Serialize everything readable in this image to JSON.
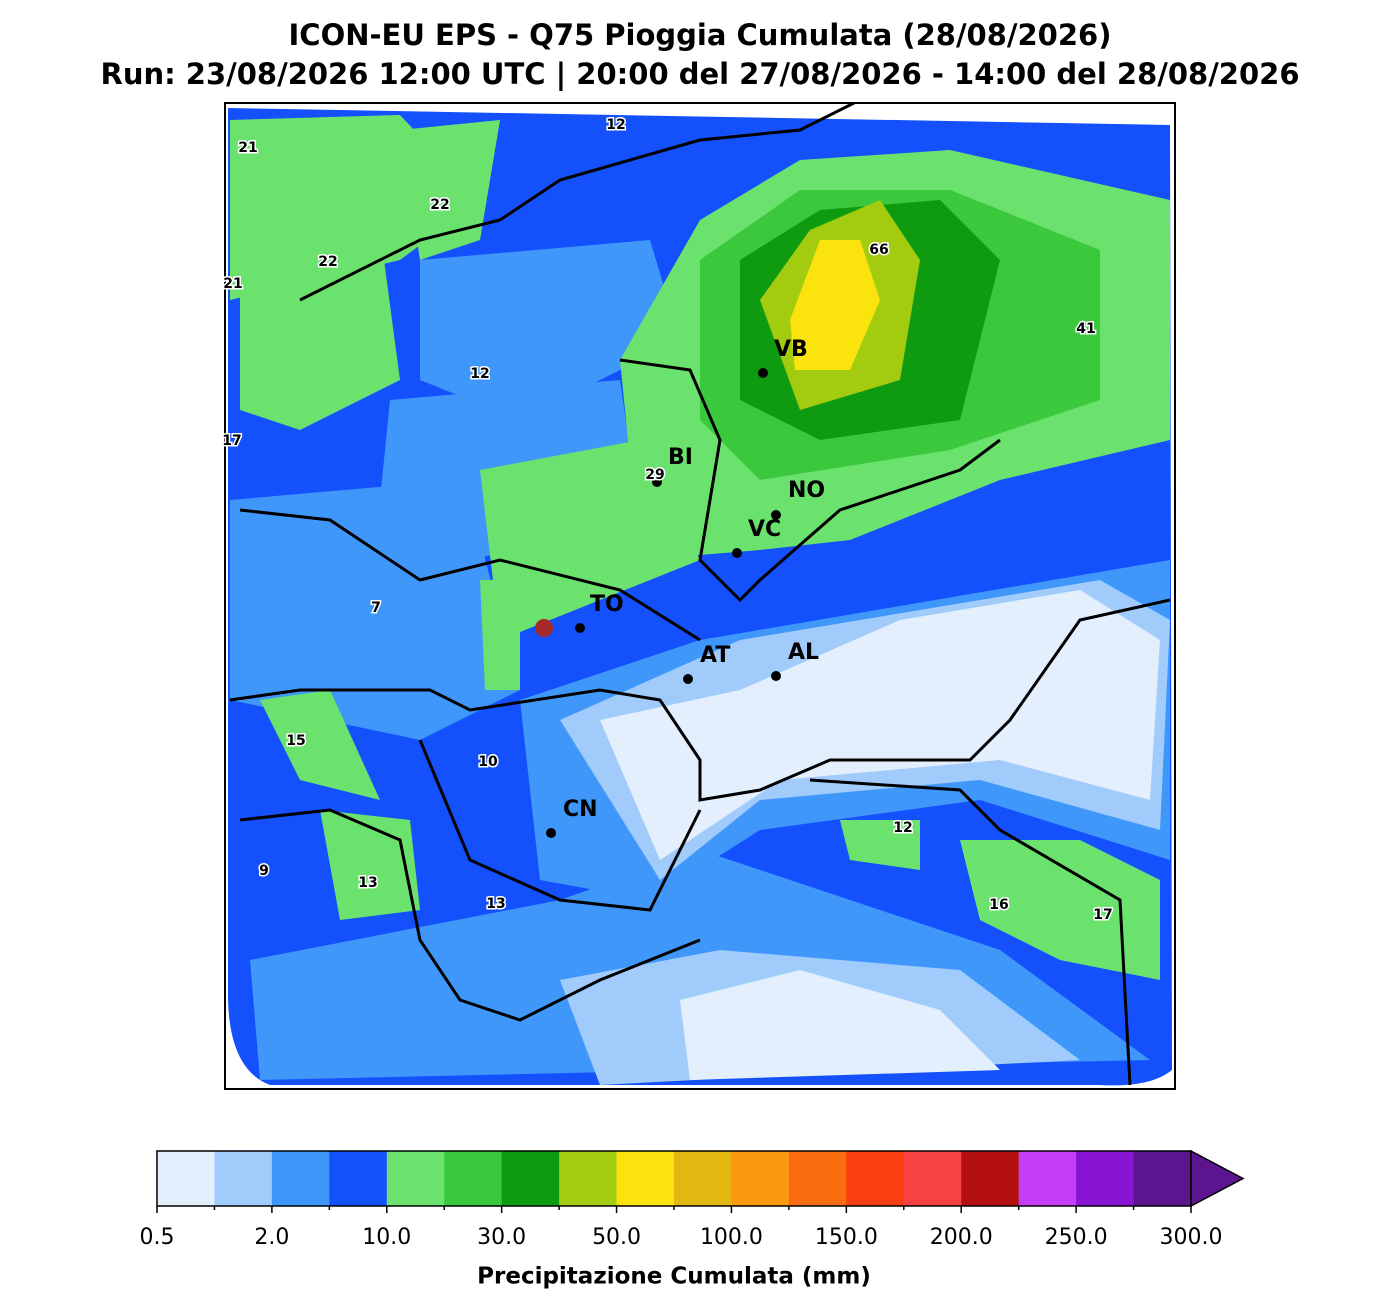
{
  "title": "ICON-EU EPS - Q75 Pioggia Cumulata (28/08/2026)",
  "subtitle": "Run: 23/08/2026 12:00 UTC | 20:00 del 27/08/2026 - 14:00 del 28/08/2026",
  "cities": [
    {
      "label": "VB"
    },
    {
      "label": "BI"
    },
    {
      "label": "NO"
    },
    {
      "label": "VC"
    },
    {
      "label": "TO"
    },
    {
      "label": "AT"
    },
    {
      "label": "AL"
    },
    {
      "label": "CN"
    }
  ],
  "map_values": [
    "21",
    "12",
    "22",
    "22",
    "21",
    "66",
    "41",
    "12",
    "17",
    "29",
    "7",
    "15",
    "10",
    "12",
    "9",
    "13",
    "13",
    "16",
    "17"
  ],
  "colorbar": {
    "label": "Precipitazione Cumulata (mm)",
    "colors": [
      "#e3effd",
      "#a0cbfb",
      "#3e97f9",
      "#1450fb",
      "#6be26e",
      "#3cc83c",
      "#0f9b0f",
      "#a3cc11",
      "#fbe30e",
      "#e3b70f",
      "#fb9a0e",
      "#fa6c10",
      "#f93e10",
      "#f84141",
      "#b40f0f",
      "#c43ef7",
      "#8a14d4",
      "#5d148f"
    ],
    "ticks": [
      "0.5",
      "2.0",
      "10.0",
      "30.0",
      "50.0",
      "100.0",
      "150.0",
      "200.0",
      "250.0",
      "300.0"
    ]
  }
}
